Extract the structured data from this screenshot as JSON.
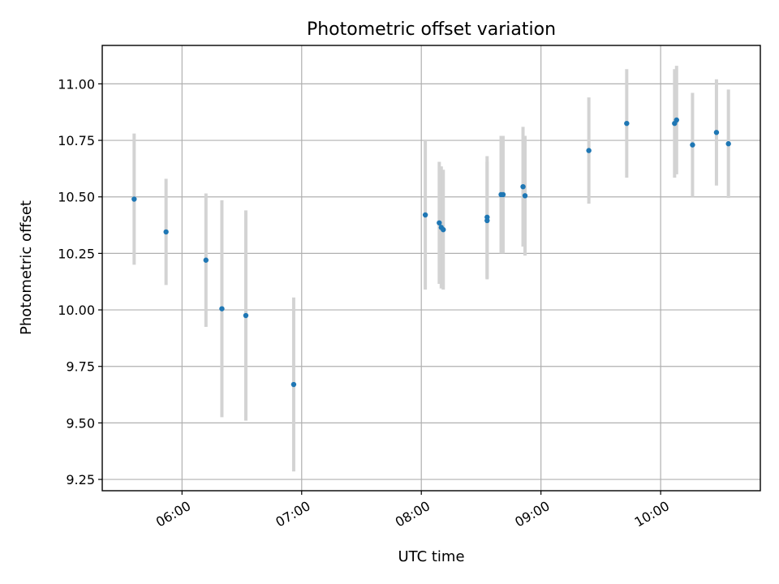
{
  "chart_data": {
    "type": "scatter",
    "title": "Photometric offset variation",
    "xlabel": "UTC time",
    "ylabel": "Photometric offset",
    "grid": true,
    "xlim": [
      "05:20",
      "10:50"
    ],
    "ylim": [
      9.2,
      11.17
    ],
    "x_ticks": [
      "06:00",
      "07:00",
      "08:00",
      "09:00",
      "10:00"
    ],
    "y_ticks": [
      "9.25",
      "9.50",
      "9.75",
      "10.00",
      "10.25",
      "10.50",
      "10.75",
      "11.00"
    ],
    "series": [
      {
        "marker_color": "#1f77b4",
        "errorbar_color": "#d3d3d3",
        "points": [
          {
            "x": "05:36",
            "y": 10.49,
            "err": 0.29
          },
          {
            "x": "05:52",
            "y": 10.345,
            "err": 0.235
          },
          {
            "x": "06:12",
            "y": 10.22,
            "err": 0.295
          },
          {
            "x": "06:20",
            "y": 10.005,
            "err": 0.48
          },
          {
            "x": "06:32",
            "y": 9.975,
            "err": 0.465
          },
          {
            "x": "06:56",
            "y": 9.67,
            "err": 0.385
          },
          {
            "x": "08:02",
            "y": 10.42,
            "err": 0.33
          },
          {
            "x": "08:09",
            "y": 10.385,
            "err": 0.27
          },
          {
            "x": "08:10",
            "y": 10.365,
            "err": 0.27
          },
          {
            "x": "08:11",
            "y": 10.355,
            "err": 0.265
          },
          {
            "x": "08:33",
            "y": 10.41,
            "err": 0.27
          },
          {
            "x": "08:33",
            "y": 10.395,
            "err": 0.26
          },
          {
            "x": "08:40",
            "y": 10.51,
            "err": 0.26
          },
          {
            "x": "08:41",
            "y": 10.51,
            "err": 0.26
          },
          {
            "x": "08:51",
            "y": 10.545,
            "err": 0.265
          },
          {
            "x": "08:52",
            "y": 10.505,
            "err": 0.265
          },
          {
            "x": "09:24",
            "y": 10.705,
            "err": 0.235
          },
          {
            "x": "09:43",
            "y": 10.825,
            "err": 0.24
          },
          {
            "x": "10:07",
            "y": 10.825,
            "err": 0.24
          },
          {
            "x": "10:08",
            "y": 10.84,
            "err": 0.24
          },
          {
            "x": "10:16",
            "y": 10.73,
            "err": 0.23
          },
          {
            "x": "10:28",
            "y": 10.785,
            "err": 0.235
          },
          {
            "x": "10:34",
            "y": 10.735,
            "err": 0.24
          }
        ]
      }
    ]
  }
}
